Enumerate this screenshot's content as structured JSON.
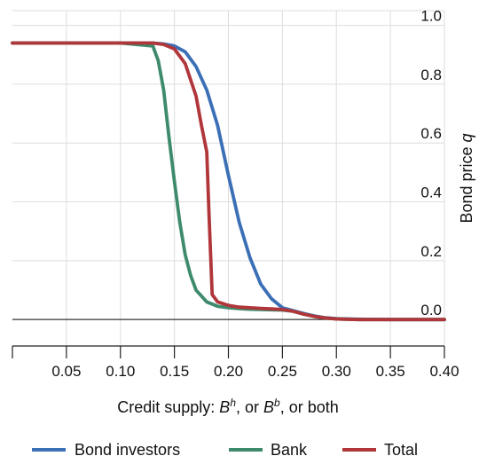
{
  "chart_data": {
    "type": "line",
    "xlabel": {
      "prefix": "Credit supply: ",
      "b1": "B",
      "s1": "h",
      "mid": ", or ",
      "b2": "B",
      "s2": "b",
      "suffix": ", or both"
    },
    "ylabel": {
      "text": "Bond price ",
      "var": "q"
    },
    "xlim": [
      0.0,
      0.4
    ],
    "ylim": [
      -0.09,
      1.05
    ],
    "y_axis_side": "right",
    "grid": true,
    "legend_position": "bottom",
    "x_ticks": [
      0.0,
      0.05,
      0.1,
      0.15,
      0.2,
      0.25,
      0.3,
      0.35,
      0.4
    ],
    "x_tick_labels": [
      "",
      "0.05",
      "0.10",
      "0.15",
      "0.20",
      "0.25",
      "0.30",
      "0.35",
      "0.40"
    ],
    "y_ticks": [
      0.0,
      0.2,
      0.4,
      0.6,
      0.8,
      1.0
    ],
    "y_tick_labels": [
      "0.0",
      "0.2",
      "0.4",
      "0.6",
      "0.8",
      "1.0"
    ],
    "zero_line": 0.0,
    "series": [
      {
        "name": "Bond investors",
        "color": "#3b6fb6",
        "x": [
          0.0,
          0.1,
          0.13,
          0.14,
          0.15,
          0.16,
          0.17,
          0.18,
          0.19,
          0.2,
          0.21,
          0.22,
          0.23,
          0.24,
          0.25,
          0.26,
          0.27,
          0.28,
          0.29,
          0.3,
          0.32,
          0.35,
          0.4
        ],
        "y": [
          0.94,
          0.94,
          0.94,
          0.937,
          0.93,
          0.91,
          0.86,
          0.78,
          0.66,
          0.49,
          0.33,
          0.21,
          0.12,
          0.07,
          0.04,
          0.03,
          0.02,
          0.012,
          0.006,
          0.003,
          0.001,
          0.0,
          0.0
        ]
      },
      {
        "name": "Bank",
        "color": "#3e8a6c",
        "x": [
          0.0,
          0.1,
          0.13,
          0.135,
          0.14,
          0.145,
          0.15,
          0.155,
          0.16,
          0.165,
          0.17,
          0.18,
          0.19,
          0.2,
          0.21,
          0.22,
          0.23,
          0.24,
          0.25,
          0.26,
          0.27,
          0.28,
          0.29,
          0.3,
          0.32,
          0.35,
          0.4
        ],
        "y": [
          0.94,
          0.94,
          0.93,
          0.88,
          0.78,
          0.62,
          0.47,
          0.33,
          0.22,
          0.15,
          0.1,
          0.06,
          0.045,
          0.04,
          0.037,
          0.035,
          0.034,
          0.033,
          0.032,
          0.028,
          0.018,
          0.01,
          0.005,
          0.002,
          0.0,
          0.0,
          0.0
        ]
      },
      {
        "name": "Total",
        "color": "#b0363a",
        "x": [
          0.0,
          0.1,
          0.13,
          0.14,
          0.15,
          0.16,
          0.17,
          0.175,
          0.18,
          0.182,
          0.185,
          0.19,
          0.2,
          0.21,
          0.22,
          0.23,
          0.24,
          0.25,
          0.26,
          0.27,
          0.28,
          0.29,
          0.3,
          0.32,
          0.35,
          0.4
        ],
        "y": [
          0.94,
          0.94,
          0.94,
          0.935,
          0.92,
          0.87,
          0.76,
          0.66,
          0.57,
          0.36,
          0.085,
          0.06,
          0.048,
          0.042,
          0.04,
          0.038,
          0.036,
          0.034,
          0.028,
          0.018,
          0.01,
          0.005,
          0.002,
          0.0,
          0.0,
          0.0
        ]
      }
    ]
  }
}
